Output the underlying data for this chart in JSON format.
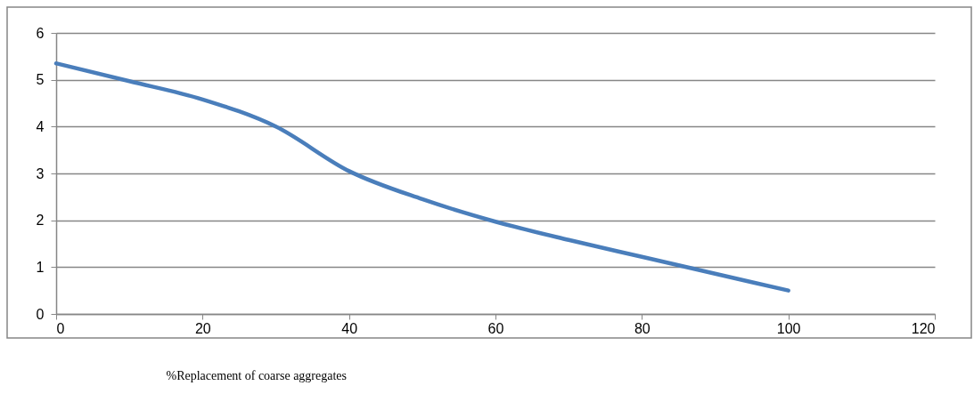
{
  "chart_data": {
    "type": "line",
    "xlabel": "%Replacement of coarse aggregates",
    "x": [
      0,
      10,
      20,
      30,
      40,
      50,
      60,
      70,
      80,
      90,
      100
    ],
    "series": [
      {
        "color": "#4a7ebb",
        "values": [
          5.35,
          4.97,
          4.58,
          4.0,
          3.05,
          2.45,
          1.97,
          1.58,
          1.22,
          0.86,
          0.5
        ]
      }
    ],
    "xlim": [
      0,
      120
    ],
    "xticks": [
      0,
      20,
      40,
      60,
      80,
      100,
      120
    ],
    "ylim": [
      0,
      6
    ],
    "yticks": [
      0,
      1,
      2,
      3,
      4,
      5,
      6
    ],
    "grid": "y",
    "marker": "none",
    "line_style": "solid"
  }
}
